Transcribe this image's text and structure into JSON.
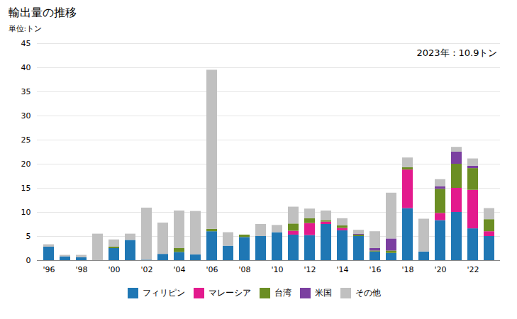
{
  "chart_data": {
    "type": "bar",
    "stacked": true,
    "title": "輸出量の推移",
    "ylabel": "単位:トン",
    "annotation": "2023年：10.9トン",
    "categories": [
      "'96",
      null,
      "'98",
      null,
      "'00",
      null,
      "'02",
      null,
      "'04",
      null,
      "'06",
      null,
      "'08",
      null,
      "'10",
      null,
      "'12",
      null,
      "'14",
      null,
      "'16",
      null,
      "'18",
      null,
      "'20",
      null,
      "'22",
      null
    ],
    "series": [
      {
        "name": "フィリピン",
        "color": "#1f77b4",
        "values": [
          2.8,
          0.8,
          0.6,
          0.0,
          2.5,
          4.2,
          0.1,
          1.3,
          1.7,
          1.2,
          6.0,
          3.0,
          4.8,
          5.0,
          5.8,
          5.3,
          5.2,
          7.5,
          6.2,
          5.0,
          1.8,
          1.5,
          10.8,
          1.8,
          8.3,
          10.0,
          6.6,
          5.0
        ]
      },
      {
        "name": "マレーシア",
        "color": "#e31a8d",
        "values": [
          0.0,
          0.0,
          0.0,
          0.0,
          0.0,
          0.0,
          0.0,
          0.0,
          0.0,
          0.0,
          0.0,
          0.0,
          0.0,
          0.0,
          0.0,
          0.8,
          2.5,
          0.5,
          0.5,
          0.0,
          0.0,
          0.0,
          8.0,
          0.0,
          1.5,
          5.0,
          8.0,
          1.0
        ]
      },
      {
        "name": "台湾",
        "color": "#6b8e23",
        "values": [
          0.0,
          0.0,
          0.0,
          0.0,
          0.3,
          0.0,
          0.0,
          0.0,
          0.8,
          0.0,
          0.5,
          0.0,
          0.5,
          0.0,
          0.0,
          1.5,
          1.0,
          0.3,
          0.5,
          0.3,
          0.2,
          0.5,
          0.5,
          0.0,
          5.0,
          5.0,
          4.5,
          2.5
        ]
      },
      {
        "name": "米国",
        "color": "#7b3fa0",
        "values": [
          0.0,
          0.0,
          0.0,
          0.0,
          0.0,
          0.0,
          0.0,
          0.0,
          0.0,
          0.0,
          0.0,
          0.0,
          0.0,
          0.0,
          0.0,
          0.0,
          0.0,
          0.0,
          0.0,
          0.2,
          0.5,
          2.5,
          0.0,
          0.0,
          0.5,
          2.5,
          0.5,
          0.0
        ]
      },
      {
        "name": "その他",
        "color": "#c0c0c0",
        "values": [
          0.5,
          0.3,
          0.5,
          5.5,
          1.5,
          1.3,
          10.8,
          6.5,
          7.8,
          9.0,
          33.0,
          2.8,
          0.0,
          2.5,
          1.5,
          3.5,
          2.0,
          2.0,
          1.5,
          0.8,
          3.5,
          9.5,
          2.0,
          6.8,
          1.5,
          1.0,
          1.5,
          2.3
        ]
      }
    ],
    "ylim": [
      0,
      45
    ],
    "yticks": [
      0,
      5,
      10,
      15,
      20,
      25,
      30,
      35,
      40,
      45
    ],
    "grid": true,
    "legend": "bottom"
  }
}
